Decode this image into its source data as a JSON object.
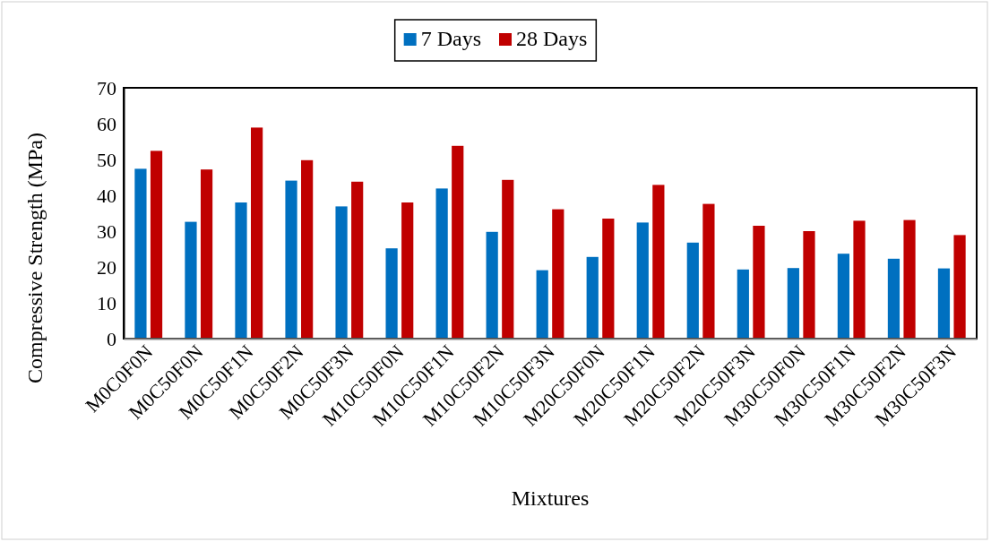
{
  "chart_data": {
    "type": "bar",
    "xlabel": "Mixtures",
    "ylabel": "Compressive Strength (MPa)",
    "categories": [
      "M0C0F0N",
      "M0C50F0N",
      "M0C50F1N",
      "M0C50F2N",
      "M0C50F3N",
      "M10C50F0N",
      "M10C50F1N",
      "M10C50F2N",
      "M10C50F3N",
      "M20C50F0N",
      "M20C50F1N",
      "M20C50F2N",
      "M20C50F3N",
      "M30C50F0N",
      "M30C50F1N",
      "M30C50F2N",
      "M30C50F3N"
    ],
    "series": [
      {
        "name": "7 Days",
        "color": "#0070c0",
        "values": [
          47.4,
          32.6,
          38.0,
          44.1,
          36.9,
          25.2,
          41.9,
          29.8,
          19.1,
          22.8,
          32.4,
          26.8,
          19.3,
          19.7,
          23.7,
          22.3,
          19.6
        ]
      },
      {
        "name": "28 Days",
        "color": "#c00000",
        "values": [
          52.4,
          47.2,
          58.9,
          49.8,
          43.8,
          38.0,
          53.8,
          44.3,
          36.1,
          33.5,
          42.9,
          37.6,
          31.5,
          30.0,
          32.9,
          33.1,
          28.9
        ]
      }
    ],
    "ylim": [
      0,
      70
    ],
    "yticks": [
      0,
      10,
      20,
      30,
      40,
      50,
      60,
      70
    ],
    "grid": false,
    "legend": "top"
  }
}
